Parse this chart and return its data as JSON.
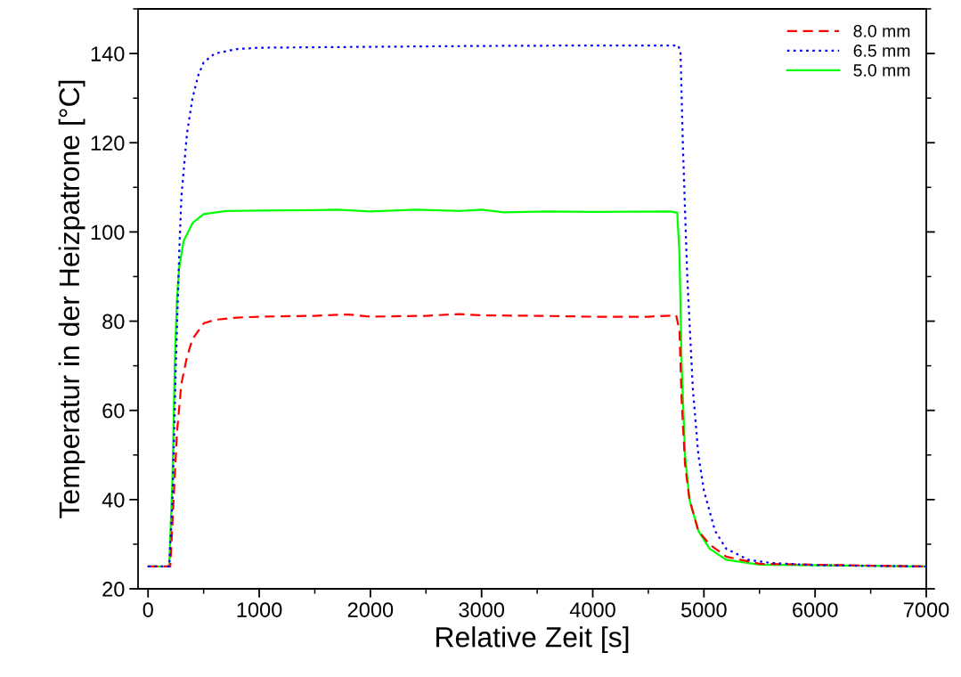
{
  "chart_data": {
    "type": "line",
    "xlabel": "Relative Zeit [s]",
    "ylabel": "Temperatur in der Heizpatrone [°C]",
    "xlim": [
      -90,
      7000
    ],
    "xticks": [
      0,
      1000,
      2000,
      3000,
      4000,
      5000,
      6000,
      7000
    ],
    "ylim": [
      20,
      150
    ],
    "yticks": [
      20,
      40,
      60,
      80,
      100,
      120,
      140
    ],
    "grid": false,
    "legend": "top right",
    "series": [
      {
        "name": "8.0 mm",
        "color": "#ff0000",
        "line_style": "dashed",
        "x": [
          0,
          200,
          230,
          260,
          300,
          350,
          400,
          500,
          600,
          800,
          1000,
          1500,
          1800,
          2000,
          2500,
          2800,
          3000,
          3500,
          4000,
          4500,
          4750,
          4780,
          4800,
          4830,
          4870,
          4950,
          5050,
          5200,
          5500,
          7000
        ],
        "values": [
          25,
          25,
          40,
          55,
          66,
          72,
          76,
          79.5,
          80.3,
          80.8,
          81,
          81.2,
          81.5,
          81,
          81.2,
          81.6,
          81.3,
          81.2,
          81,
          81,
          81.3,
          78,
          62,
          48,
          40,
          33,
          30,
          27.2,
          25.6,
          25
        ]
      },
      {
        "name": "6.5 mm",
        "color": "#0000ff",
        "line_style": "dotted",
        "x": [
          0,
          190,
          220,
          250,
          280,
          300,
          350,
          400,
          450,
          500,
          600,
          800,
          1000,
          2000,
          3000,
          4000,
          4770,
          4790,
          4810,
          4850,
          4900,
          4950,
          5000,
          5100,
          5200,
          5400,
          5600,
          6000,
          7000
        ],
        "values": [
          25,
          25,
          40,
          70,
          95,
          108,
          122,
          130,
          135,
          138,
          140,
          141,
          141.3,
          141.5,
          141.7,
          141.8,
          141.8,
          140,
          120,
          90,
          65,
          50,
          42,
          33,
          29,
          26.5,
          25.8,
          25.3,
          25
        ]
      },
      {
        "name": "5.0 mm",
        "color": "#00ff00",
        "line_style": "solid",
        "x": [
          0,
          190,
          220,
          240,
          260,
          280,
          320,
          400,
          500,
          700,
          1000,
          1500,
          1700,
          2000,
          2400,
          2800,
          3000,
          3200,
          3600,
          4000,
          4700,
          4760,
          4780,
          4800,
          4830,
          4870,
          4950,
          5050,
          5200,
          5500,
          7000
        ],
        "values": [
          25,
          25,
          45,
          70,
          85,
          92,
          98,
          102,
          104,
          104.7,
          104.8,
          104.9,
          105,
          104.6,
          105,
          104.7,
          105,
          104.4,
          104.6,
          104.5,
          104.6,
          104.3,
          95,
          70,
          50,
          40,
          33,
          29,
          26.5,
          25.4,
          25
        ]
      }
    ]
  }
}
